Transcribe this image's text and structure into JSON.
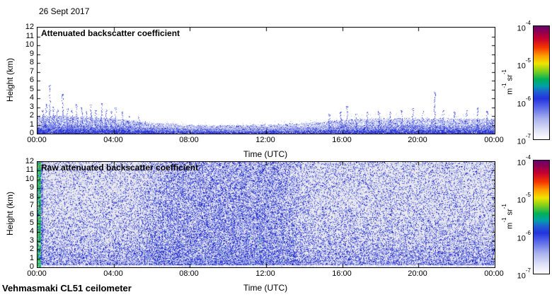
{
  "page": {
    "background": "#ffffff",
    "date_label": "26 Sept 2017",
    "footer": "Vehmasmaki CL51 ceilometer",
    "text_color": "#000000"
  },
  "chart_data": [
    {
      "type": "heatmap",
      "title": "Attenuated backscatter coefficient",
      "xlabel": "Time (UTC)",
      "ylabel": "Height (km)",
      "x_ticks": [
        "00:00",
        "04:00",
        "08:00",
        "12:00",
        "16:00",
        "20:00",
        "00:00"
      ],
      "y_ticks": [
        0,
        1,
        2,
        3,
        4,
        5,
        6,
        7,
        8,
        9,
        10,
        11,
        12
      ],
      "xlim_hours": [
        0,
        24
      ],
      "ylim_km": [
        0,
        12
      ],
      "grid": false,
      "background": "#ffffff",
      "colorbar": {
        "scale": "log10",
        "min": 1e-07,
        "max": 0.0001,
        "tick_labels": [
          {
            "base": "10",
            "exp": "-4"
          },
          {
            "base": "10",
            "exp": "-5"
          },
          {
            "base": "10",
            "exp": "-6"
          },
          {
            "base": "10",
            "exp": "-7"
          }
        ],
        "unit_parts": [
          {
            "text": "m"
          },
          {
            "exp": "-1"
          },
          {
            "text": " sr"
          },
          {
            "exp": "-1"
          }
        ],
        "gradient": [
          {
            "pos": 0.0,
            "color": "#ffffff"
          },
          {
            "pos": 0.08,
            "color": "#dfe2f6"
          },
          {
            "pos": 0.18,
            "color": "#aab2ee"
          },
          {
            "pos": 0.28,
            "color": "#5b6ae8"
          },
          {
            "pos": 0.36,
            "color": "#2233dd"
          },
          {
            "pos": 0.42,
            "color": "#1f5fd0"
          },
          {
            "pos": 0.47,
            "color": "#00a0a8"
          },
          {
            "pos": 0.53,
            "color": "#00b058"
          },
          {
            "pos": 0.6,
            "color": "#7ece1e"
          },
          {
            "pos": 0.67,
            "color": "#efe400"
          },
          {
            "pos": 0.74,
            "color": "#ff9a00"
          },
          {
            "pos": 0.81,
            "color": "#f43600"
          },
          {
            "pos": 0.89,
            "color": "#c40030"
          },
          {
            "pos": 0.95,
            "color": "#8e0050"
          },
          {
            "pos": 1.0,
            "color": "#68006e"
          }
        ]
      },
      "plot": {
        "surface_band_km": 0.85,
        "surface_band_color": "#dcdce8",
        "speckle_colors": [
          "#1a1ab8",
          "#2a35d8",
          "#5866e4",
          "#8e99ec",
          "#bcc3f2"
        ],
        "envelope": {
          "hours": [
            0,
            1,
            2,
            3,
            4,
            5,
            6,
            7,
            8,
            9,
            10,
            11,
            12,
            13,
            14,
            15,
            16,
            17,
            18,
            19,
            20,
            21,
            22,
            23,
            24
          ],
          "km": [
            1.9,
            1.95,
            1.8,
            1.7,
            1.55,
            1.35,
            1.15,
            1.0,
            0.9,
            0.85,
            0.85,
            0.9,
            0.95,
            1.0,
            1.1,
            1.25,
            1.45,
            1.55,
            1.6,
            1.6,
            1.6,
            1.6,
            1.55,
            1.6,
            1.55
          ]
        },
        "density_profile": {
          "hours": [
            0,
            4,
            6,
            8,
            12,
            15,
            16,
            24
          ],
          "dots_per_column": [
            34,
            30,
            22,
            16,
            16,
            20,
            26,
            30
          ]
        },
        "spikes_hour_km": [
          [
            0.25,
            2.6
          ],
          [
            0.45,
            3.3
          ],
          [
            0.65,
            5.5
          ],
          [
            0.8,
            3.0
          ],
          [
            1.05,
            2.7
          ],
          [
            1.3,
            4.4
          ],
          [
            1.55,
            2.9
          ],
          [
            1.8,
            2.6
          ],
          [
            2.05,
            3.3
          ],
          [
            2.3,
            2.9
          ],
          [
            2.55,
            2.5
          ],
          [
            2.8,
            3.2
          ],
          [
            3.05,
            2.6
          ],
          [
            3.35,
            3.4
          ],
          [
            3.6,
            2.7
          ],
          [
            3.85,
            2.5
          ],
          [
            4.1,
            2.9
          ],
          [
            4.45,
            2.4
          ],
          [
            4.8,
            2.1
          ],
          [
            5.3,
            1.9
          ],
          [
            15.3,
            2.2
          ],
          [
            15.9,
            2.5
          ],
          [
            16.25,
            3.1
          ],
          [
            16.7,
            2.3
          ],
          [
            17.3,
            2.4
          ],
          [
            17.9,
            2.5
          ],
          [
            18.5,
            2.4
          ],
          [
            19.1,
            2.6
          ],
          [
            19.7,
            2.8
          ],
          [
            20.2,
            2.5
          ],
          [
            20.85,
            4.7
          ],
          [
            21.3,
            2.6
          ],
          [
            21.9,
            2.4
          ],
          [
            22.5,
            2.6
          ],
          [
            23.1,
            2.9
          ],
          [
            23.6,
            2.5
          ]
        ]
      }
    },
    {
      "type": "heatmap",
      "title": "Raw attenuated backscatter coefficient",
      "xlabel": "Time (UTC)",
      "ylabel": "Height (km)",
      "x_ticks": [
        "00:00",
        "04:00",
        "08:00",
        "12:00",
        "16:00",
        "20:00",
        "00:00"
      ],
      "y_ticks": [
        0,
        1,
        2,
        3,
        4,
        5,
        6,
        7,
        8,
        9,
        10,
        11,
        12
      ],
      "xlim_hours": [
        0,
        24
      ],
      "ylim_km": [
        0,
        12
      ],
      "grid": false,
      "background": "#e9e9ee",
      "colorbar": {
        "scale": "log10",
        "min": 1e-07,
        "max": 0.0001,
        "tick_labels": [
          {
            "base": "10",
            "exp": "-4"
          },
          {
            "base": "10",
            "exp": "-5"
          },
          {
            "base": "10",
            "exp": "-6"
          },
          {
            "base": "10",
            "exp": "-7"
          }
        ],
        "unit_parts": [
          {
            "text": "m"
          },
          {
            "exp": "-1"
          },
          {
            "text": " sr"
          },
          {
            "exp": "-1"
          }
        ],
        "gradient": [
          {
            "pos": 0.0,
            "color": "#ffffff"
          },
          {
            "pos": 0.08,
            "color": "#dfe2f6"
          },
          {
            "pos": 0.18,
            "color": "#aab2ee"
          },
          {
            "pos": 0.28,
            "color": "#5b6ae8"
          },
          {
            "pos": 0.36,
            "color": "#2233dd"
          },
          {
            "pos": 0.42,
            "color": "#1f5fd0"
          },
          {
            "pos": 0.47,
            "color": "#00a0a8"
          },
          {
            "pos": 0.53,
            "color": "#00b058"
          },
          {
            "pos": 0.6,
            "color": "#7ece1e"
          },
          {
            "pos": 0.67,
            "color": "#efe400"
          },
          {
            "pos": 0.74,
            "color": "#ff9a00"
          },
          {
            "pos": 0.81,
            "color": "#f43600"
          },
          {
            "pos": 0.89,
            "color": "#c40030"
          },
          {
            "pos": 0.95,
            "color": "#8e0050"
          },
          {
            "pos": 1.0,
            "color": "#68006e"
          }
        ]
      },
      "noise": {
        "speckle_colors": {
          "light": "#b4bbee",
          "medium": "#6673e6",
          "strong": "#2733d4",
          "dark": "#1616a8"
        },
        "green_colors": [
          "#22b060",
          "#00b890",
          "#60c830"
        ],
        "uniformity_by_hour": {
          "hours": [
            0,
            5,
            5.8,
            6.5,
            8,
            12,
            13,
            13.6,
            14.5,
            24
          ],
          "w": [
            0.25,
            0.28,
            0.45,
            0.72,
            0.85,
            0.85,
            0.78,
            0.6,
            0.33,
            0.3
          ]
        },
        "density_by_hour": {
          "hours": [
            0,
            3,
            5,
            6,
            8,
            12,
            13,
            14,
            16,
            20,
            24
          ],
          "d": [
            0.56,
            0.54,
            0.56,
            0.66,
            0.72,
            0.72,
            0.7,
            0.56,
            0.55,
            0.55,
            0.57
          ]
        },
        "saturated_green_stripe_hours": [
          0,
          0.2
        ]
      }
    }
  ]
}
